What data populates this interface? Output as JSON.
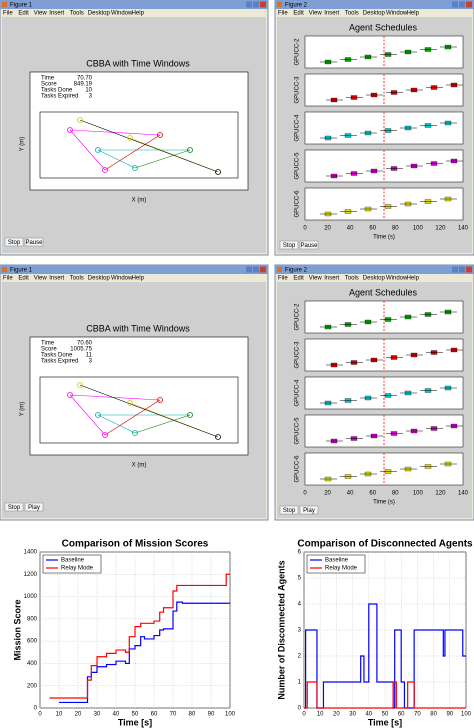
{
  "screens": [
    {
      "left": {
        "window_title": "Figure 1",
        "menu": [
          "File",
          "Edit",
          "View",
          "Insert",
          "Tools",
          "Desktop",
          "Window",
          "Help"
        ],
        "title": "CBBA with Time Windows",
        "stats": [
          [
            "Time",
            "70.70"
          ],
          [
            "Score",
            "849.19"
          ],
          [
            "Tasks Done",
            "10"
          ],
          [
            "Tasks Expired",
            "3"
          ]
        ],
        "xlabel": "X (m)",
        "ylabel": "Y (m)",
        "buttons": [
          "Stop",
          "Pause"
        ]
      },
      "right": {
        "window_title": "Figure 2",
        "menu": [
          "File",
          "Edit",
          "View",
          "Insert",
          "Tools",
          "Desktop",
          "Window",
          "Help"
        ],
        "title": "Agent Schedules",
        "agents": [
          "GPUCC-2",
          "GPUCC-3",
          "GPUCC-4",
          "GPUCC-5",
          "GPUCC-6"
        ],
        "xticks": [
          "0",
          "20",
          "40",
          "60",
          "80",
          "100",
          "120",
          "140"
        ],
        "xlabel": "Time (s)",
        "buttons": [
          "Stop",
          "Pause"
        ]
      }
    },
    {
      "left": {
        "window_title": "Figure 1",
        "menu": [
          "File",
          "Edit",
          "View",
          "Insert",
          "Tools",
          "Desktop",
          "Window",
          "Help"
        ],
        "title": "CBBA with Time Windows",
        "stats": [
          [
            "Time",
            "70.60"
          ],
          [
            "Score",
            "1005.75"
          ],
          [
            "Tasks Done",
            "11"
          ],
          [
            "Tasks Expired",
            "3"
          ]
        ],
        "xlabel": "X (m)",
        "ylabel": "Y (m)",
        "buttons": [
          "Stop",
          "Play"
        ]
      },
      "right": {
        "window_title": "Figure 2",
        "menu": [
          "File",
          "Edit",
          "View",
          "Insert",
          "Tools",
          "Desktop",
          "Window",
          "Help"
        ],
        "title": "Agent Schedules",
        "agents": [
          "GPUCC-2",
          "GPUCC-3",
          "GPUCC-4",
          "GPUCC-5",
          "GPUCC-6"
        ],
        "xticks": [
          "0",
          "20",
          "40",
          "60",
          "80",
          "100",
          "120",
          "140"
        ],
        "xlabel": "Time (s)",
        "buttons": [
          "Stop",
          "Play"
        ]
      }
    }
  ],
  "chart_data": [
    {
      "type": "line",
      "step": true,
      "title": "Comparison of Mission Scores",
      "xlabel": "Time [s]",
      "ylabel": "Mission Score",
      "x": [
        5,
        10,
        25,
        27,
        30,
        35,
        40,
        45,
        47,
        50,
        53,
        55,
        60,
        63,
        65,
        70,
        72,
        75,
        98,
        100
      ],
      "series": [
        {
          "name": "Baseline",
          "color": "#0000ff",
          "values": [
            null,
            50,
            280,
            320,
            370,
            390,
            420,
            400,
            530,
            560,
            640,
            620,
            650,
            700,
            710,
            870,
            950,
            940,
            940,
            940
          ]
        },
        {
          "name": "Relay Mode",
          "color": "#ff0000",
          "values": [
            90,
            90,
            250,
            380,
            460,
            490,
            520,
            500,
            640,
            730,
            760,
            760,
            780,
            860,
            900,
            1050,
            1100,
            1100,
            1200,
            1200
          ]
        }
      ],
      "xlim": [
        0,
        100
      ],
      "ylim": [
        0,
        1400
      ],
      "xticks": [
        0,
        10,
        20,
        30,
        40,
        50,
        60,
        70,
        80,
        90,
        100
      ],
      "yticks": [
        0,
        200,
        400,
        600,
        800,
        1000,
        1200,
        1400
      ],
      "grid": true,
      "legend": "upper left"
    },
    {
      "type": "line",
      "step": true,
      "title": "Comparison of Disconnected Agents",
      "xlabel": "Time [s]",
      "ylabel": "Number of Disconnected Agents",
      "x": [
        0,
        1,
        2,
        5,
        8,
        12,
        35,
        37,
        40,
        45,
        54,
        55,
        56,
        57,
        60,
        62,
        64,
        66,
        68,
        86,
        87,
        98,
        100
      ],
      "series": [
        {
          "name": "Baseline",
          "color": "#0000ff",
          "values": [
            0,
            3,
            3,
            3,
            0,
            1,
            2,
            1,
            4,
            1,
            1,
            0,
            3,
            3,
            1,
            0,
            0,
            0,
            3,
            2,
            3,
            2,
            2
          ]
        },
        {
          "name": "Relay Mode",
          "color": "#ff0000",
          "values": [
            0,
            0,
            1,
            1,
            0,
            0,
            0,
            0,
            0,
            0,
            0,
            1,
            1,
            0,
            0,
            0,
            1,
            1,
            0,
            0,
            0,
            0,
            0
          ]
        }
      ],
      "xlim": [
        0,
        100
      ],
      "ylim": [
        0,
        6
      ],
      "xticks": [
        0,
        10,
        20,
        30,
        40,
        50,
        60,
        70,
        80,
        90,
        100
      ],
      "yticks": [
        0,
        1,
        2,
        3,
        4,
        5,
        6
      ],
      "grid": true,
      "legend": "upper left"
    }
  ]
}
